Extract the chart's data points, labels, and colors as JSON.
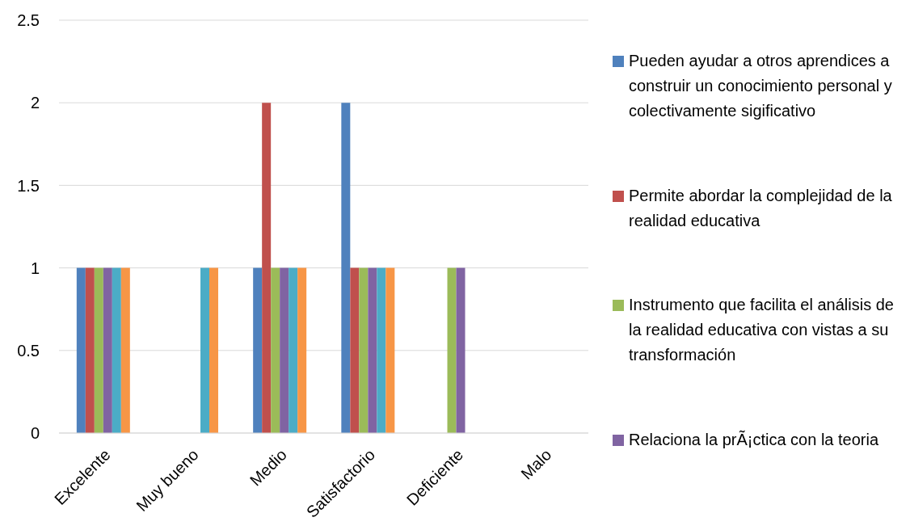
{
  "chart_data": {
    "type": "bar",
    "categories": [
      "Excelente",
      "Muy bueno",
      "Medio",
      "Satisfactorio",
      "Deficiente",
      "Malo"
    ],
    "series": [
      {
        "name": "Pueden ayudar a otros aprendices a construir un conocimiento personal y colectivamente sigificativo",
        "color": "#4f81bd",
        "values": [
          1,
          0,
          1,
          2,
          0,
          0
        ]
      },
      {
        "name": "Permite abordar la complejidad de la realidad educativa",
        "color": "#c0504d",
        "values": [
          1,
          0,
          2,
          1,
          0,
          0
        ]
      },
      {
        "name": "Instrumento que facilita el análisis de la realidad educativa con vistas a su transformación",
        "color": "#9bbb59",
        "values": [
          1,
          0,
          1,
          1,
          1,
          0
        ]
      },
      {
        "name": "Relaciona la prÃ¡ctica con la teoria",
        "color": "#8064a2",
        "values": [
          1,
          0,
          1,
          1,
          1,
          0
        ]
      },
      {
        "color": "#4bacc6",
        "values": [
          1,
          1,
          1,
          1,
          0,
          0
        ]
      },
      {
        "color": "#f79646",
        "values": [
          1,
          1,
          1,
          1,
          0,
          0
        ]
      }
    ],
    "ylim": [
      0,
      2.5
    ],
    "yticks": [
      0,
      0.5,
      1,
      1.5,
      2,
      2.5
    ],
    "grid": "y",
    "legend": "right"
  }
}
